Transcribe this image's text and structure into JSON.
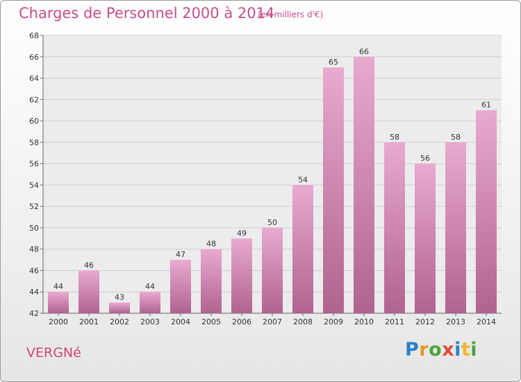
{
  "header": {
    "title": "Charges de Personnel 2000 à 2014",
    "subtitle": "(en milliers d'€)"
  },
  "footer": {
    "commune": "VERGNé",
    "brand": "Proxiti"
  },
  "colors": {
    "bar_top": "#e8aad0",
    "bar_bottom": "#b0638f",
    "text_accent": "#c64d8a"
  },
  "chart_data": {
    "type": "bar",
    "title": "Charges de Personnel 2000 à 2014",
    "subtitle": "(en milliers d'€)",
    "categories": [
      "2000",
      "2001",
      "2002",
      "2003",
      "2004",
      "2005",
      "2006",
      "2007",
      "2008",
      "2009",
      "2010",
      "2011",
      "2012",
      "2013",
      "2014"
    ],
    "values": [
      44,
      46,
      43,
      44,
      47,
      48,
      49,
      50,
      54,
      65,
      66,
      58,
      56,
      58,
      61
    ],
    "ylim": [
      42,
      68
    ],
    "yticks": [
      42,
      44,
      46,
      48,
      50,
      52,
      54,
      56,
      58,
      60,
      62,
      64,
      66,
      68
    ],
    "grid": true
  }
}
